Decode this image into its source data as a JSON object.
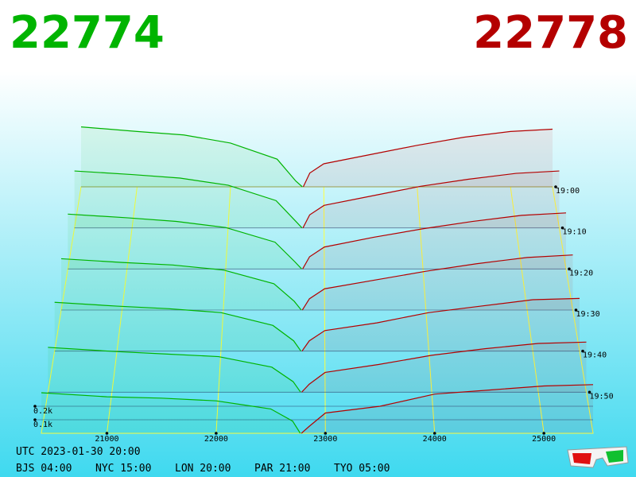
{
  "chart_data": {
    "type": "depth3d",
    "bid": 22774,
    "ask": 22778,
    "bid_color": "#00b400",
    "ask_color": "#b40000",
    "xlim": [
      20400,
      25450
    ],
    "xticks": [
      21000,
      22000,
      23000,
      24000,
      25000
    ],
    "tlim": [
      1140,
      1200
    ],
    "tticks": [
      {
        "value": 1140,
        "label": "19:00"
      },
      {
        "value": 1150,
        "label": "19:10"
      },
      {
        "value": 1160,
        "label": "19:20"
      },
      {
        "value": 1170,
        "label": "19:30"
      },
      {
        "value": 1180,
        "label": "19:40"
      },
      {
        "value": 1190,
        "label": "19:50"
      }
    ],
    "zlim": [
      0,
      0.6
    ],
    "zticks": [
      {
        "value": 0.1,
        "label": "0.1k"
      },
      {
        "value": 0.2,
        "label": "0.2k"
      }
    ],
    "bids": [
      {
        "t": 1140,
        "prices": [
          20400,
          21000,
          21500,
          22000,
          22500,
          22700,
          22770
        ],
        "depth": [
          0.52,
          0.48,
          0.45,
          0.38,
          0.24,
          0.05,
          0
        ]
      },
      {
        "t": 1150,
        "prices": [
          20400,
          21000,
          21500,
          22000,
          22500,
          22700,
          22770
        ],
        "depth": [
          0.48,
          0.45,
          0.42,
          0.36,
          0.23,
          0.06,
          0
        ]
      },
      {
        "t": 1160,
        "prices": [
          20400,
          21000,
          21500,
          22000,
          22500,
          22700,
          22770
        ],
        "depth": [
          0.45,
          0.42,
          0.39,
          0.34,
          0.22,
          0.06,
          0
        ]
      },
      {
        "t": 1170,
        "prices": [
          20400,
          21000,
          21500,
          22000,
          22500,
          22700,
          22770
        ],
        "depth": [
          0.41,
          0.38,
          0.36,
          0.32,
          0.21,
          0.07,
          0
        ]
      },
      {
        "t": 1180,
        "prices": [
          20400,
          21000,
          21500,
          22000,
          22500,
          22700,
          22770
        ],
        "depth": [
          0.38,
          0.35,
          0.33,
          0.3,
          0.2,
          0.08,
          0
        ]
      },
      {
        "t": 1190,
        "prices": [
          20400,
          21000,
          21500,
          22000,
          22500,
          22700,
          22770
        ],
        "depth": [
          0.34,
          0.31,
          0.29,
          0.27,
          0.19,
          0.08,
          0
        ]
      },
      {
        "t": 1200,
        "prices": [
          20400,
          21000,
          21500,
          22000,
          22500,
          22700,
          22770
        ],
        "depth": [
          0.3,
          0.27,
          0.26,
          0.24,
          0.18,
          0.09,
          0
        ]
      }
    ],
    "asks": [
      {
        "t": 1140,
        "prices": [
          22780,
          22850,
          23000,
          23500,
          24000,
          24500,
          25000,
          25450
        ],
        "depth": [
          0,
          0.12,
          0.2,
          0.28,
          0.36,
          0.43,
          0.48,
          0.5
        ]
      },
      {
        "t": 1150,
        "prices": [
          22780,
          22850,
          23000,
          23500,
          24000,
          24500,
          25000,
          25450
        ],
        "depth": [
          0,
          0.11,
          0.19,
          0.27,
          0.35,
          0.41,
          0.46,
          0.48
        ]
      },
      {
        "t": 1160,
        "prices": [
          22780,
          22850,
          23000,
          23500,
          24000,
          24500,
          25000,
          25450
        ],
        "depth": [
          0,
          0.1,
          0.18,
          0.26,
          0.33,
          0.39,
          0.44,
          0.46
        ]
      },
      {
        "t": 1170,
        "prices": [
          22780,
          22850,
          23000,
          23500,
          24000,
          24500,
          25000,
          25450
        ],
        "depth": [
          0,
          0.09,
          0.17,
          0.24,
          0.31,
          0.37,
          0.42,
          0.44
        ]
      },
      {
        "t": 1180,
        "prices": [
          22780,
          22850,
          23000,
          23500,
          24000,
          24500,
          25000,
          25450
        ],
        "depth": [
          0,
          0.08,
          0.16,
          0.22,
          0.3,
          0.35,
          0.4,
          0.41
        ]
      },
      {
        "t": 1190,
        "prices": [
          22780,
          22850,
          23000,
          23500,
          24000,
          24500,
          25000,
          25450
        ],
        "depth": [
          0,
          0.06,
          0.15,
          0.21,
          0.28,
          0.33,
          0.37,
          0.38
        ]
      },
      {
        "t": 1200,
        "prices": [
          22780,
          22850,
          23000,
          23500,
          24000,
          24500,
          25000,
          25450
        ],
        "depth": [
          0,
          0.05,
          0.15,
          0.2,
          0.29,
          0.32,
          0.35,
          0.36
        ]
      }
    ]
  },
  "footer": {
    "utc": "UTC 2023-01-30 20:00",
    "zones": [
      "BJS 04:00",
      "NYC 15:00",
      "LON 20:00",
      "PAR 21:00",
      "TYO 05:00"
    ]
  }
}
